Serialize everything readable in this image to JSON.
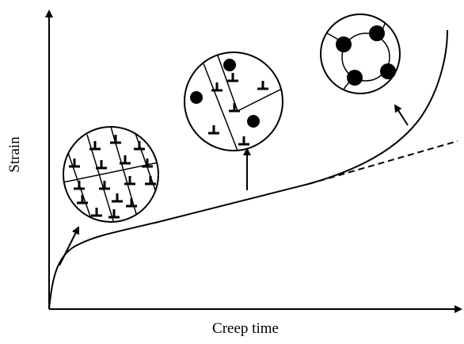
{
  "axes": {
    "x_label": "Creep time",
    "y_label": "Strain"
  }
}
